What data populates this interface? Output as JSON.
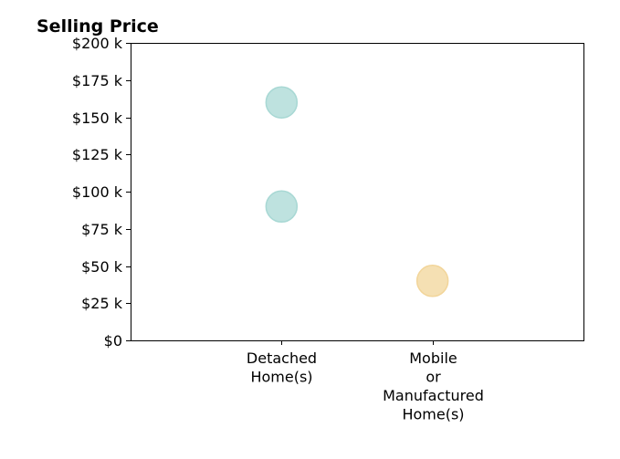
{
  "chart_data": {
    "type": "scatter",
    "title": "Selling Price",
    "xlabel": "",
    "ylabel": "",
    "categories": [
      [
        "Detached",
        "Home(s)"
      ],
      [
        "Mobile",
        "or",
        "Manufactured",
        "Home(s)"
      ]
    ],
    "ylim": [
      0,
      200000
    ],
    "yticks": [
      0,
      25000,
      50000,
      75000,
      100000,
      125000,
      150000,
      175000,
      200000
    ],
    "ytick_labels": [
      "$0",
      "$25 k",
      "$50 k",
      "$75 k",
      "$100 k",
      "$125 k",
      "$150 k",
      "$175 k",
      "$200 k"
    ],
    "grid": false,
    "points": [
      {
        "category": 0,
        "y": 160000,
        "color": "#a8d8d4"
      },
      {
        "category": 0,
        "y": 90000,
        "color": "#a8d8d4"
      },
      {
        "category": 1,
        "y": 40000,
        "color": "#f2d59a"
      }
    ]
  }
}
